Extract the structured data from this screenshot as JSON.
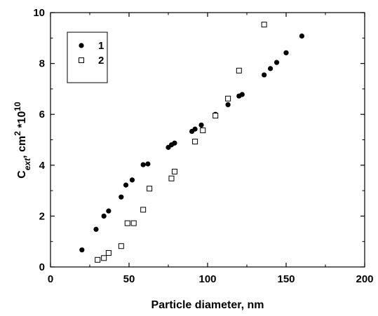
{
  "chart_data": {
    "type": "scatter",
    "title": "",
    "xlabel": "Particle diameter, nm",
    "ylabel": {
      "base": "C",
      "sub": "ext",
      "mid": ", cm",
      "sup1": "2",
      "after": " *10",
      "sup2": "10"
    },
    "xlim": [
      0,
      200
    ],
    "ylim": [
      0,
      10
    ],
    "xticks": [
      "0",
      "50",
      "100",
      "150",
      "200"
    ],
    "yticks": [
      "0",
      "2",
      "4",
      "6",
      "8",
      "10"
    ],
    "grid": false,
    "legend_position": "top-left",
    "series": [
      {
        "name": "1",
        "marker": "filled-circle",
        "color": "#000000",
        "points": [
          [
            20,
            0.67
          ],
          [
            29,
            1.48
          ],
          [
            34,
            2.0
          ],
          [
            37,
            2.2
          ],
          [
            45,
            2.75
          ],
          [
            48,
            3.22
          ],
          [
            52,
            3.42
          ],
          [
            59,
            4.02
          ],
          [
            62,
            4.05
          ],
          [
            75,
            4.7
          ],
          [
            77,
            4.8
          ],
          [
            79,
            4.87
          ],
          [
            90,
            5.33
          ],
          [
            92,
            5.42
          ],
          [
            96,
            5.58
          ],
          [
            105,
            6.0
          ],
          [
            113,
            6.38
          ],
          [
            120,
            6.72
          ],
          [
            122,
            6.78
          ],
          [
            136,
            7.55
          ],
          [
            140,
            7.8
          ],
          [
            144,
            8.04
          ],
          [
            150,
            8.42
          ],
          [
            160,
            9.08
          ]
        ]
      },
      {
        "name": "2",
        "marker": "open-square",
        "color": "#000000",
        "points": [
          [
            30,
            0.28
          ],
          [
            34,
            0.35
          ],
          [
            37,
            0.55
          ],
          [
            45,
            0.82
          ],
          [
            49,
            1.72
          ],
          [
            53,
            1.72
          ],
          [
            59,
            2.25
          ],
          [
            63,
            3.08
          ],
          [
            77,
            3.48
          ],
          [
            79,
            3.75
          ],
          [
            92,
            4.93
          ],
          [
            97,
            5.37
          ],
          [
            105,
            5.95
          ],
          [
            113,
            6.62
          ],
          [
            120,
            7.72
          ],
          [
            136,
            9.53
          ]
        ]
      }
    ]
  }
}
